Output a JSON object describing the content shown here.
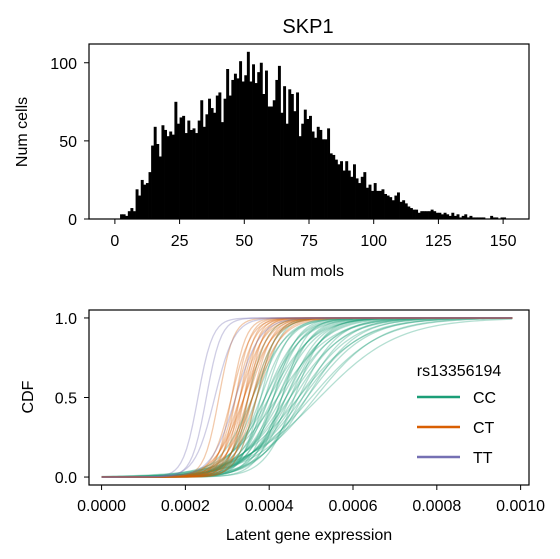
{
  "chart_data": [
    {
      "type": "bar",
      "title": "SKP1",
      "xlabel": "Num mols",
      "ylabel": "Num cells",
      "xlim": [
        -10,
        160
      ],
      "ylim": [
        0,
        112
      ],
      "xticks": [
        "0",
        "25",
        "50",
        "75",
        "100",
        "125",
        "150"
      ],
      "yticks": [
        "0",
        "50",
        "100"
      ],
      "bin_width": 1,
      "bin_start": 0,
      "values": [
        0,
        0,
        3,
        3,
        2,
        5,
        7,
        5,
        19,
        15,
        25,
        22,
        23,
        30,
        47,
        59,
        48,
        40,
        60,
        57,
        53,
        56,
        54,
        75,
        61,
        65,
        66,
        55,
        63,
        57,
        58,
        55,
        63,
        76,
        59,
        67,
        77,
        71,
        68,
        79,
        81,
        62,
        77,
        96,
        79,
        89,
        93,
        90,
        101,
        88,
        92,
        107,
        88,
        99,
        87,
        94,
        100,
        80,
        95,
        72,
        72,
        76,
        89,
        98,
        68,
        85,
        61,
        83,
        80,
        69,
        81,
        53,
        61,
        70,
        64,
        66,
        56,
        52,
        59,
        57,
        51,
        51,
        58,
        42,
        41,
        38,
        35,
        37,
        31,
        37,
        31,
        27,
        35,
        26,
        23,
        27,
        30,
        20,
        22,
        18,
        23,
        18,
        18,
        19,
        16,
        15,
        14,
        12,
        15,
        17,
        11,
        12,
        10,
        8,
        7,
        6,
        6,
        4,
        5,
        5,
        5,
        5,
        6,
        5,
        4,
        4,
        3,
        4,
        3,
        2,
        4,
        2,
        3,
        1,
        2,
        3,
        1,
        2,
        1,
        1,
        1,
        1,
        1,
        0,
        0,
        2,
        1,
        1,
        0,
        1,
        1,
        0,
        0,
        0,
        0
      ],
      "grid": false
    },
    {
      "type": "line",
      "xlabel": "Latent gene expression",
      "ylabel": "CDF",
      "xlim": [
        -3e-05,
        0.00102
      ],
      "ylim": [
        -0.05,
        1.05
      ],
      "xticks": [
        "0.0000",
        "0.0002",
        "0.0004",
        "0.0006",
        "0.0008",
        "0.0010"
      ],
      "yticks": [
        "0.0",
        "0.5",
        "1.0"
      ],
      "x_range": [
        0,
        0.00098
      ],
      "legend": {
        "title": "rs13356194",
        "placement": "center-right",
        "entries": [
          {
            "label": "CC",
            "color": "#1b9e77"
          },
          {
            "label": "CT",
            "color": "#d95f02"
          },
          {
            "label": "TT",
            "color": "#7570b3"
          }
        ]
      },
      "series": [
        {
          "group": "CC",
          "color": "#1b9e77",
          "curves": [
            [
              0.00038,
              4e-05
            ],
            [
              0.00039,
              5e-05
            ],
            [
              0.0004,
              6e-05
            ],
            [
              0.00041,
              5e-05
            ],
            [
              0.00042,
              7e-05
            ],
            [
              0.00043,
              6e-05
            ],
            [
              0.00044,
              8e-05
            ],
            [
              0.00045,
              9e-05
            ],
            [
              0.00046,
              0.0001
            ],
            [
              0.00047,
              0.00011
            ],
            [
              0.00049,
              0.00012
            ],
            [
              0.00037,
              4e-05
            ],
            [
              0.00039,
              7e-05
            ],
            [
              0.00041,
              8e-05
            ],
            [
              0.00043,
              9e-05
            ],
            [
              0.00045,
              0.00011
            ],
            [
              0.00047,
              0.00013
            ],
            [
              0.0005,
              0.00014
            ],
            [
              0.00052,
              0.00016
            ],
            [
              0.00036,
              5e-05
            ],
            [
              0.00038,
              6e-05
            ],
            [
              0.0004,
              7e-05
            ],
            [
              0.00042,
              8e-05
            ],
            [
              0.00044,
              7e-05
            ],
            [
              0.00046,
              6e-05
            ],
            [
              0.00048,
              9e-05
            ],
            [
              0.00035,
              4e-05
            ],
            [
              0.00041,
              6e-05
            ],
            [
              0.00043,
              5e-05
            ],
            [
              0.00044,
              0.0001
            ],
            [
              0.00042,
              0.00011
            ],
            [
              0.0004,
              9e-05
            ],
            [
              0.00039,
              8e-05
            ],
            [
              0.00045,
              7e-05
            ],
            [
              0.00047,
              8e-05
            ],
            [
              0.00048,
              0.00012
            ],
            [
              0.00037,
              6e-05
            ],
            [
              0.00036,
              7e-05
            ],
            [
              0.00051,
              0.00013
            ],
            [
              0.00049,
              0.0001
            ]
          ]
        },
        {
          "group": "CT",
          "color": "#d95f02",
          "curves": [
            [
              0.00031,
              3e-05
            ],
            [
              0.00032,
              3e-05
            ],
            [
              0.00033,
              4e-05
            ],
            [
              0.00034,
              3e-05
            ],
            [
              0.00034,
              4e-05
            ],
            [
              0.00035,
              4e-05
            ],
            [
              0.00035,
              5e-05
            ],
            [
              0.00036,
              4e-05
            ],
            [
              0.00036,
              5e-05
            ],
            [
              0.00037,
              5e-05
            ],
            [
              0.00032,
              4e-05
            ],
            [
              0.00033,
              3e-05
            ],
            [
              0.00034,
              5e-05
            ],
            [
              0.00035,
              3e-05
            ],
            [
              0.00036,
              6e-05
            ],
            [
              0.00033,
              5e-05
            ],
            [
              0.00037,
              4e-05
            ],
            [
              0.00034,
              6e-05
            ],
            [
              0.00031,
              4e-05
            ],
            [
              0.00028,
              3e-05
            ]
          ]
        },
        {
          "group": "TT",
          "color": "#7570b3",
          "curves": [
            [
              0.00023,
              3e-05
            ],
            [
              0.00025,
              3e-05
            ],
            [
              0.00027,
              4e-05
            ],
            [
              0.00032,
              5e-05
            ]
          ]
        }
      ]
    }
  ]
}
